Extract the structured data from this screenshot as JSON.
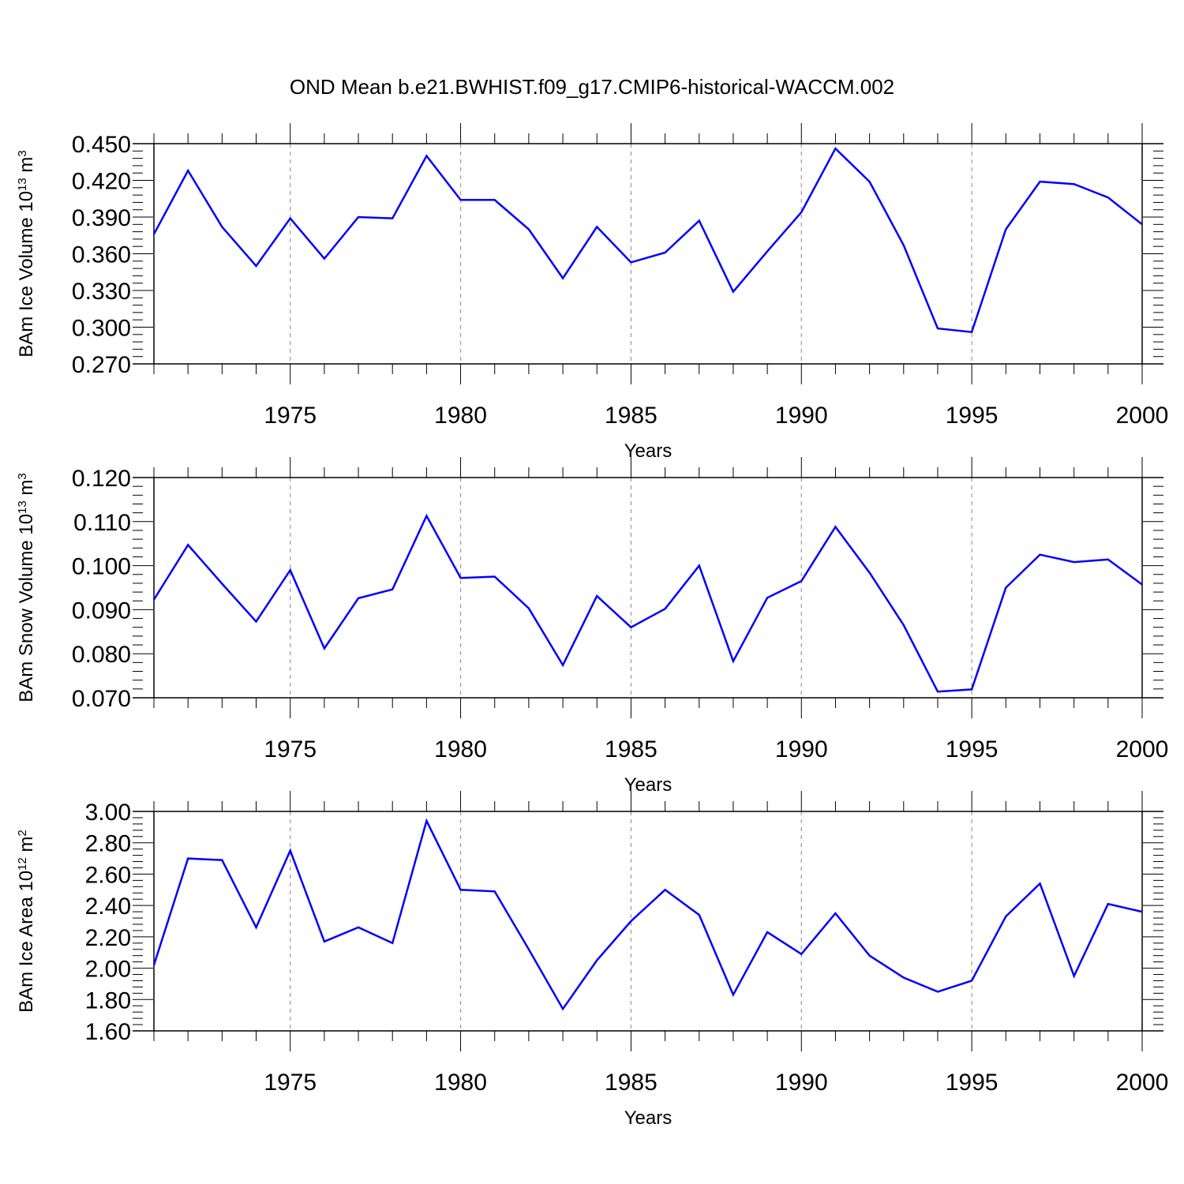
{
  "title": "OND Mean b.e21.BWHIST.f09_g17.CMIP6-historical-WACCM.002",
  "colors": {
    "line": "#0000ff",
    "frame": "#000000",
    "grid": "#999999"
  },
  "chart_data": [
    {
      "type": "line",
      "xlabel": "Years",
      "ylabel": {
        "prefix": "BAm Ice Volume 10",
        "exp": "13",
        "unit": " m",
        "unit_exp": "3"
      },
      "xlim": [
        1971,
        2000
      ],
      "ylim": [
        0.27,
        0.45
      ],
      "x_ticks": [
        "1975",
        "1980",
        "1985",
        "1990",
        "1995",
        "2000"
      ],
      "y_ticks": [
        "0.270",
        "0.300",
        "0.330",
        "0.360",
        "0.390",
        "0.420",
        "0.450"
      ],
      "grid": "vertical dashed at major x ticks",
      "x": [
        1971,
        1972,
        1973,
        1974,
        1975,
        1976,
        1977,
        1978,
        1979,
        1980,
        1981,
        1982,
        1983,
        1984,
        1985,
        1986,
        1987,
        1988,
        1989,
        1990,
        1991,
        1992,
        1993,
        1994,
        1995,
        1996,
        1997,
        1998,
        1999,
        2000
      ],
      "values": [
        0.376,
        0.428,
        0.382,
        0.35,
        0.389,
        0.356,
        0.39,
        0.389,
        0.44,
        0.404,
        0.404,
        0.38,
        0.34,
        0.382,
        0.353,
        0.361,
        0.387,
        0.329,
        0.362,
        0.394,
        0.446,
        0.419,
        0.367,
        0.299,
        0.296,
        0.38,
        0.419,
        0.417,
        0.406,
        0.384
      ]
    },
    {
      "type": "line",
      "xlabel": "Years",
      "ylabel": {
        "prefix": "BAm Snow Volume 10",
        "exp": "13",
        "unit": " m",
        "unit_exp": "3"
      },
      "xlim": [
        1971,
        2000
      ],
      "ylim": [
        0.07,
        0.12
      ],
      "x_ticks": [
        "1975",
        "1980",
        "1985",
        "1990",
        "1995",
        "2000"
      ],
      "y_ticks": [
        "0.070",
        "0.080",
        "0.090",
        "0.100",
        "0.110",
        "0.120"
      ],
      "grid": "vertical dashed at major x ticks",
      "x": [
        1971,
        1972,
        1973,
        1974,
        1975,
        1976,
        1977,
        1978,
        1979,
        1980,
        1981,
        1982,
        1983,
        1984,
        1985,
        1986,
        1987,
        1988,
        1989,
        1990,
        1991,
        1992,
        1993,
        1994,
        1995,
        1996,
        1997,
        1998,
        1999,
        2000
      ],
      "values": [
        0.0923,
        0.1047,
        0.0959,
        0.0873,
        0.099,
        0.0812,
        0.0926,
        0.0946,
        0.1113,
        0.0972,
        0.0975,
        0.0903,
        0.0774,
        0.0931,
        0.086,
        0.0902,
        0.1,
        0.0783,
        0.0927,
        0.0965,
        0.1088,
        0.0984,
        0.0865,
        0.0714,
        0.0719,
        0.095,
        0.1025,
        0.1008,
        0.1014,
        0.0957
      ]
    },
    {
      "type": "line",
      "xlabel": "Years",
      "ylabel": {
        "prefix": "BAm Ice Area 10",
        "exp": "12",
        "unit": " m",
        "unit_exp": "2"
      },
      "xlim": [
        1971,
        2000
      ],
      "ylim": [
        1.6,
        3.0
      ],
      "x_ticks": [
        "1975",
        "1980",
        "1985",
        "1990",
        "1995",
        "2000"
      ],
      "y_ticks": [
        "1.60",
        "1.80",
        "2.00",
        "2.20",
        "2.40",
        "2.60",
        "2.80",
        "3.00"
      ],
      "grid": "vertical dashed at major x ticks",
      "x": [
        1971,
        1972,
        1973,
        1974,
        1975,
        1976,
        1977,
        1978,
        1979,
        1980,
        1981,
        1982,
        1983,
        1984,
        1985,
        1986,
        1987,
        1988,
        1989,
        1990,
        1991,
        1992,
        1993,
        1994,
        1995,
        1996,
        1997,
        1998,
        1999,
        2000
      ],
      "values": [
        2.02,
        2.7,
        2.69,
        2.26,
        2.75,
        2.17,
        2.26,
        2.16,
        2.94,
        2.5,
        2.49,
        2.12,
        1.74,
        2.05,
        2.3,
        2.5,
        2.34,
        1.83,
        2.23,
        2.09,
        2.35,
        2.08,
        1.94,
        1.85,
        1.92,
        2.33,
        2.54,
        1.95,
        2.41,
        2.36
      ]
    }
  ]
}
